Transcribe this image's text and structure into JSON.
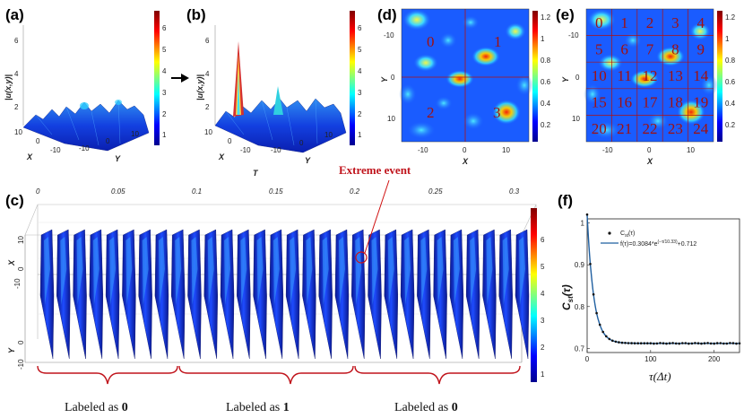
{
  "panels": {
    "a": {
      "label": "(a)",
      "zlabel": "|u(x,y)|",
      "xlabel": "X",
      "ylabel": "Y",
      "zticks": [
        "6",
        "4",
        "2"
      ],
      "xticks": [
        "10",
        "0",
        "-10"
      ],
      "yticks": [
        "-10",
        "0",
        "10"
      ],
      "colorbar_ticks": [
        "6",
        "5",
        "4",
        "3",
        "2",
        "1"
      ]
    },
    "b": {
      "label": "(b)",
      "zlabel": "|u(x,y)|",
      "xlabel": "X",
      "ylabel": "Y",
      "extra_label": "T",
      "zticks": [
        "6",
        "4",
        "2"
      ],
      "xticks": [
        "10",
        "0",
        "-10"
      ],
      "yticks": [
        "-10",
        "0",
        "10"
      ],
      "colorbar_ticks": [
        "6",
        "5",
        "4",
        "3",
        "2",
        "1"
      ]
    },
    "d": {
      "label": "(d)",
      "xlabel": "X",
      "ylabel": "Y",
      "xticks": [
        "-10",
        "0",
        "10"
      ],
      "yticks": [
        "-10",
        "0",
        "10"
      ],
      "colorbar_ticks": [
        "1.2",
        "1",
        "0.8",
        "0.6",
        "0.4",
        "0.2"
      ],
      "regions": [
        "0",
        "1",
        "2",
        "3"
      ]
    },
    "e": {
      "label": "(e)",
      "xlabel": "X",
      "ylabel": "Y",
      "xticks": [
        "-10",
        "0",
        "10"
      ],
      "yticks": [
        "-10",
        "0",
        "10"
      ],
      "colorbar_ticks": [
        "1.2",
        "1",
        "0.8",
        "0.6",
        "0.4",
        "0.2"
      ],
      "regions": [
        "0",
        "1",
        "2",
        "3",
        "4",
        "5",
        "6",
        "7",
        "8",
        "9",
        "10",
        "11",
        "12",
        "13",
        "14",
        "15",
        "16",
        "17",
        "18",
        "19",
        "20",
        "21",
        "22",
        "23",
        "24"
      ]
    },
    "c": {
      "label": "(c)",
      "xlabel": "X",
      "ylabel": "Y",
      "time_ticks": [
        "0",
        "0.05",
        "0.1",
        "0.15",
        "0.2",
        "0.25",
        "0.3"
      ],
      "x_ticks": [
        "10",
        "0",
        "-10"
      ],
      "y_ticks": [
        "0",
        "-10"
      ],
      "colorbar_ticks": [
        "6",
        "5",
        "4",
        "3",
        "2",
        "1"
      ],
      "annotation": "Extreme event",
      "segment_labels": [
        {
          "text": "Labeled as ",
          "value": "0"
        },
        {
          "text": "Labeled as ",
          "value": "1"
        },
        {
          "text": "Labeled as ",
          "value": "0"
        }
      ]
    },
    "f": {
      "label": "(f)",
      "xlabel": "τ(Δt)",
      "ylabel": "C",
      "ylabel_sub": "st",
      "ylabel_arg": "(τ)",
      "xticks": [
        "0",
        "100",
        "200"
      ],
      "yticks": [
        "1",
        "0.9",
        "0.8",
        "0.7"
      ],
      "legend_points": "C",
      "legend_points_sub": "st",
      "legend_points_arg": "(τ)",
      "legend_fit_pre": "f(τ)=0.3084*e",
      "legend_fit_exp": "(−τ/10.33)",
      "legend_fit_post": "+0.712"
    }
  },
  "chart_data": {
    "type": "scatter",
    "title": "",
    "xlabel": "τ(Δt)",
    "ylabel": "C_st(τ)",
    "xlim": [
      0,
      240
    ],
    "ylim": [
      0.69,
      1.01
    ],
    "fit": {
      "A": 0.3084,
      "tau": 10.33,
      "C": 0.712
    },
    "series": [
      {
        "name": "C_st(τ)",
        "step": 5,
        "count": 49
      },
      {
        "name": "f(τ)=0.3084*e^(−τ/10.33)+0.712"
      }
    ]
  }
}
